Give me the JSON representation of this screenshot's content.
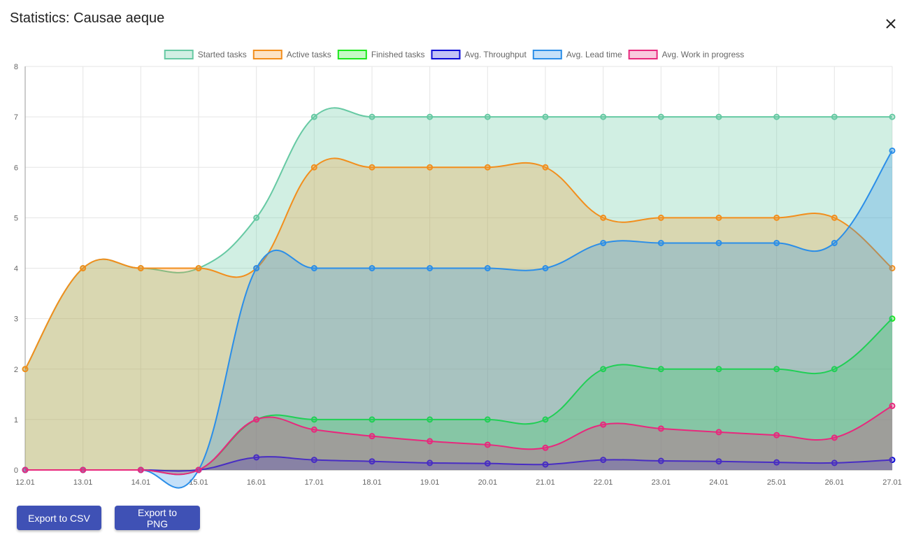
{
  "dialog": {
    "title": "Statistics: Causae aeque",
    "export_csv_label": "Export to CSV",
    "export_png_label": "Export to PNG"
  },
  "chart_data": {
    "type": "area",
    "categories": [
      "12.01",
      "13.01",
      "14.01",
      "15.01",
      "16.01",
      "17.01",
      "18.01",
      "19.01",
      "20.01",
      "21.01",
      "22.01",
      "23.01",
      "24.01",
      "25.01",
      "26.01",
      "27.01"
    ],
    "ylim": [
      0,
      8
    ],
    "yticks": [
      0,
      1,
      2,
      3,
      4,
      5,
      6,
      7,
      8
    ],
    "grid": true,
    "legend_position": "top",
    "series": [
      {
        "name": "Started tasks",
        "color": "#66c9a3",
        "fill": "rgba(102,201,163,0.3)",
        "values": [
          2,
          4,
          4,
          4,
          5,
          7,
          7,
          7,
          7,
          7,
          7,
          7,
          7,
          7,
          7,
          7
        ]
      },
      {
        "name": "Active tasks",
        "color": "#f28e1c",
        "fill": "rgba(242,142,28,0.25)",
        "values": [
          2,
          4,
          4,
          4,
          4,
          6,
          6,
          6,
          6,
          6,
          5,
          5,
          5,
          5,
          5,
          4
        ]
      },
      {
        "name": "Finished tasks",
        "color": "#1de81d",
        "fill": "rgba(29,232,29,0.25)",
        "values": [
          0,
          0,
          0,
          0,
          1,
          1,
          1,
          1,
          1,
          1,
          2,
          2,
          2,
          2,
          2,
          3
        ]
      },
      {
        "name": "Avg. Throughput",
        "color": "#0a0ad6",
        "fill": "rgba(10,10,214,0.25)",
        "values": [
          0,
          0,
          0,
          0,
          0.25,
          0.2,
          0.17,
          0.14,
          0.13,
          0.11,
          0.2,
          0.18,
          0.17,
          0.15,
          0.14,
          0.2
        ]
      },
      {
        "name": "Avg. Lead time",
        "color": "#2b8ee8",
        "fill": "rgba(43,142,232,0.28)",
        "values": [
          0,
          0,
          0,
          0,
          4,
          4,
          4,
          4,
          4,
          4,
          4.5,
          4.5,
          4.5,
          4.5,
          4.5,
          6.33
        ]
      },
      {
        "name": "Avg. Work in progress",
        "color": "#e8287d",
        "fill": "rgba(232,40,125,0.25)",
        "values": [
          0,
          0,
          0,
          0,
          1,
          0.8,
          0.67,
          0.57,
          0.5,
          0.44,
          0.9,
          0.82,
          0.75,
          0.69,
          0.64,
          1.27
        ]
      }
    ]
  }
}
